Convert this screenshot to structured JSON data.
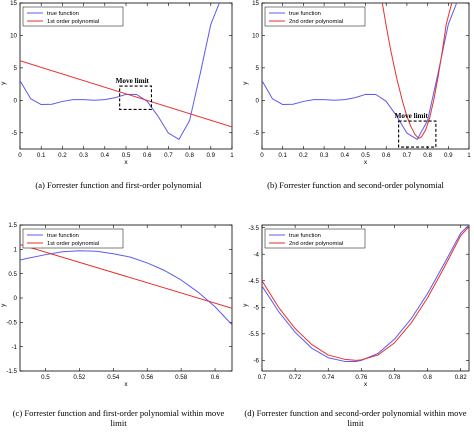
{
  "chart_data": [
    {
      "id": "a",
      "type": "line",
      "title": "",
      "xlabel": "x",
      "ylabel": "y",
      "xlim": [
        0,
        1
      ],
      "ylim": [
        -7.5,
        15
      ],
      "xticks": [
        0,
        0.1,
        0.2,
        0.3,
        0.4,
        0.5,
        0.6,
        0.7,
        0.8,
        0.9,
        1
      ],
      "xtick_labels": [
        "0",
        "0.1",
        "0.2",
        "0.3",
        "0.4",
        "0.5",
        "0.6",
        "0.7",
        "0.8",
        "0.9",
        "1"
      ],
      "yticks": [
        -5,
        0,
        5,
        10,
        15
      ],
      "ytick_labels": [
        "-5",
        "0",
        "5",
        "10",
        "15"
      ],
      "grid": false,
      "legend": "top-left",
      "series": [
        {
          "name": "true function",
          "color": "#5b5bf0",
          "x": [
            0,
            0.05,
            0.1,
            0.15,
            0.2,
            0.25,
            0.3,
            0.35,
            0.4,
            0.45,
            0.5,
            0.55,
            0.6,
            0.65,
            0.7,
            0.75,
            0.8,
            0.85,
            0.9,
            0.95,
            1
          ],
          "y": [
            3.03,
            0.26,
            -0.65,
            -0.6,
            -0.17,
            0.11,
            0.1,
            0.02,
            0.11,
            0.42,
            0.91,
            0.9,
            -0.15,
            -2.4,
            -5.05,
            -6.02,
            -3.1,
            4.1,
            11.7,
            15.8,
            15.83
          ]
        },
        {
          "name": "1st order polynomial",
          "color": "#e8302d",
          "x": [
            0,
            1
          ],
          "y": [
            6.1,
            -4.1
          ]
        }
      ],
      "annotations": [
        {
          "text": "Move limit",
          "x0": 0.47,
          "x1": 0.62,
          "y0": -1.4,
          "y1": 2.2
        }
      ]
    },
    {
      "id": "b",
      "type": "line",
      "title": "",
      "xlabel": "x",
      "ylabel": "y",
      "xlim": [
        0,
        1
      ],
      "ylim": [
        -7.5,
        15
      ],
      "xticks": [
        0,
        0.1,
        0.2,
        0.3,
        0.4,
        0.5,
        0.6,
        0.7,
        0.8,
        0.9,
        1
      ],
      "xtick_labels": [
        "0",
        "0.1",
        "0.2",
        "0.3",
        "0.4",
        "0.5",
        "0.6",
        "0.7",
        "0.8",
        "0.9",
        "1"
      ],
      "yticks": [
        -5,
        0,
        5,
        10,
        15
      ],
      "ytick_labels": [
        "-5",
        "0",
        "5",
        "10",
        "15"
      ],
      "grid": false,
      "legend": "top-left",
      "series": [
        {
          "name": "true function",
          "color": "#5b5bf0",
          "x": [
            0,
            0.05,
            0.1,
            0.15,
            0.2,
            0.25,
            0.3,
            0.35,
            0.4,
            0.45,
            0.5,
            0.55,
            0.6,
            0.65,
            0.7,
            0.75,
            0.8,
            0.85,
            0.9,
            0.95,
            1
          ],
          "y": [
            3.03,
            0.26,
            -0.65,
            -0.6,
            -0.17,
            0.11,
            0.1,
            0.02,
            0.11,
            0.42,
            0.91,
            0.9,
            -0.15,
            -2.4,
            -5.05,
            -6.02,
            -3.1,
            4.1,
            11.7,
            15.8,
            15.83
          ]
        },
        {
          "name": "2nd order polynomial",
          "color": "#e8302d",
          "x": [
            0.58,
            0.6,
            0.62,
            0.65,
            0.68,
            0.7,
            0.72,
            0.74,
            0.757,
            0.77,
            0.79,
            0.81,
            0.83,
            0.85,
            0.87,
            0.89,
            0.91,
            0.92
          ],
          "y": [
            15.2,
            11.5,
            8.0,
            3.5,
            -0.3,
            -2.45,
            -4.1,
            -5.3,
            -5.85,
            -5.65,
            -4.6,
            -2.7,
            0.1,
            3.5,
            7.4,
            11.7,
            14.2,
            15.3
          ]
        }
      ],
      "annotations": [
        {
          "text": "Move limit",
          "x0": 0.66,
          "x1": 0.84,
          "y0": -7.2,
          "y1": -3.2
        }
      ]
    },
    {
      "id": "c",
      "type": "line",
      "title": "",
      "xlabel": "x",
      "ylabel": "y",
      "xlim": [
        0.485,
        0.61
      ],
      "ylim": [
        -1.5,
        1.5
      ],
      "xticks": [
        0.5,
        0.52,
        0.54,
        0.56,
        0.58,
        0.6
      ],
      "xtick_labels": [
        "0.5",
        "0.52",
        "0.54",
        "0.56",
        "0.58",
        "0.6"
      ],
      "yticks": [
        -1.5,
        -1,
        -0.5,
        0,
        0.5,
        1,
        1.5
      ],
      "ytick_labels": [
        "-1.5",
        "-1",
        "-0.5",
        "0",
        "0.5",
        "1",
        "1.5"
      ],
      "grid": false,
      "legend": "top-left",
      "series": [
        {
          "name": "true function",
          "color": "#5b5bf0",
          "x": [
            0.485,
            0.49,
            0.5,
            0.51,
            0.52,
            0.53,
            0.54,
            0.55,
            0.56,
            0.57,
            0.58,
            0.59,
            0.6,
            0.61
          ],
          "y": [
            0.78,
            0.82,
            0.89,
            0.95,
            0.97,
            0.96,
            0.91,
            0.84,
            0.72,
            0.57,
            0.37,
            0.12,
            -0.18,
            -0.55
          ]
        },
        {
          "name": "1st order polynomial",
          "color": "#e8302d",
          "x": [
            0.485,
            0.61
          ],
          "y": [
            1.1,
            -0.21
          ]
        }
      ]
    },
    {
      "id": "d",
      "type": "line",
      "title": "",
      "xlabel": "x",
      "ylabel": "y",
      "xlim": [
        0.7,
        0.825
      ],
      "ylim": [
        -6.2,
        -3.45
      ],
      "xticks": [
        0.7,
        0.72,
        0.74,
        0.76,
        0.78,
        0.8,
        0.82
      ],
      "xtick_labels": [
        "0.7",
        "0.72",
        "0.74",
        "0.76",
        "0.78",
        "0.8",
        "0.82"
      ],
      "yticks": [
        -6,
        -5.5,
        -5,
        -4.5,
        -4,
        -3.5
      ],
      "ytick_labels": [
        "-6",
        "-5.5",
        "-5",
        "-4.5",
        "-4",
        "-3.5"
      ],
      "grid": false,
      "legend": "top-left",
      "series": [
        {
          "name": "true function",
          "color": "#5b5bf0",
          "x": [
            0.7,
            0.71,
            0.72,
            0.73,
            0.74,
            0.75,
            0.757,
            0.76,
            0.77,
            0.78,
            0.79,
            0.8,
            0.81,
            0.82,
            0.825
          ],
          "y": [
            -4.6,
            -5.08,
            -5.47,
            -5.77,
            -5.95,
            -6.02,
            -6.02,
            -6.0,
            -5.87,
            -5.6,
            -5.22,
            -4.74,
            -4.18,
            -3.6,
            -3.45
          ]
        },
        {
          "name": "2nd order polynomial",
          "color": "#e8302d",
          "x": [
            0.7,
            0.71,
            0.72,
            0.73,
            0.74,
            0.75,
            0.757,
            0.76,
            0.77,
            0.78,
            0.79,
            0.8,
            0.81,
            0.82,
            0.825
          ],
          "y": [
            -4.5,
            -5.0,
            -5.4,
            -5.7,
            -5.9,
            -5.98,
            -6.0,
            -5.99,
            -5.9,
            -5.67,
            -5.3,
            -4.82,
            -4.25,
            -3.65,
            -3.48
          ]
        }
      ]
    }
  ],
  "captions": {
    "a": "(a) Forrester function and first-order polynomial",
    "b": "(b) Forrester function and second-order polynomial",
    "c": "(c) Forrester function and first-order polynomial within move limit",
    "d": "(d) Forrester function and second-order polynomial within move limit"
  }
}
